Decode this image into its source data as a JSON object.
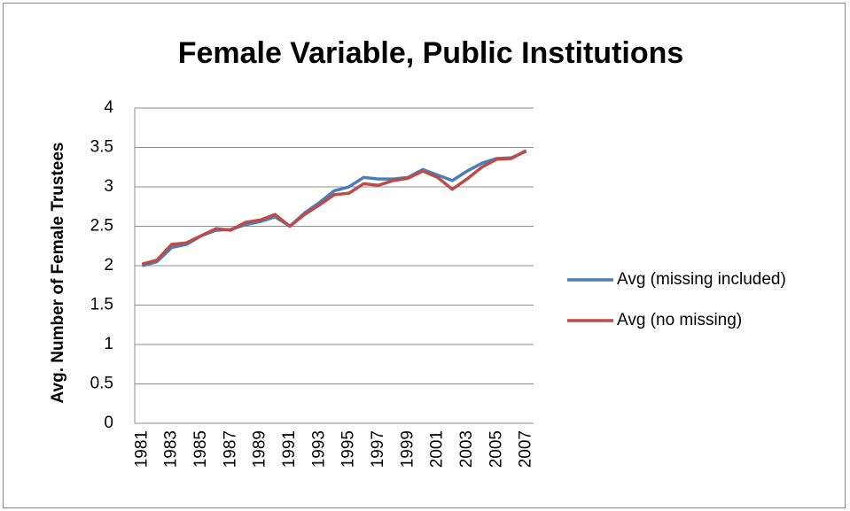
{
  "chart_data": {
    "type": "line",
    "title": "Female Variable, Public Institutions",
    "y_label": "Avg. Number of Female Trustees",
    "categories": [
      1981,
      null,
      1983,
      null,
      1985,
      null,
      1987,
      null,
      1989,
      null,
      1991,
      null,
      1993,
      null,
      1995,
      null,
      1997,
      null,
      1999,
      null,
      2001,
      null,
      2003,
      null,
      2005,
      null,
      2007
    ],
    "series": [
      {
        "name": "Avg (missing included)",
        "color": "#4a7ebb",
        "values": [
          2.0,
          2.05,
          2.23,
          2.27,
          2.38,
          2.45,
          2.46,
          2.52,
          2.56,
          2.62,
          2.5,
          2.67,
          2.8,
          2.95,
          3.0,
          3.12,
          3.1,
          3.1,
          3.12,
          3.22,
          3.15,
          3.08,
          3.2,
          3.3,
          3.36,
          3.37,
          3.45
        ]
      },
      {
        "name": "Avg (no missing)",
        "color": "#be4b48",
        "values": [
          2.02,
          2.07,
          2.27,
          2.29,
          2.38,
          2.47,
          2.45,
          2.55,
          2.58,
          2.65,
          2.5,
          2.65,
          2.77,
          2.9,
          2.92,
          3.04,
          3.02,
          3.08,
          3.11,
          3.2,
          3.12,
          2.97,
          3.1,
          3.25,
          3.35,
          3.36,
          3.46
        ]
      }
    ],
    "ylim": [
      0,
      4
    ],
    "yticks": [
      0,
      0.5,
      1,
      1.5,
      2,
      2.5,
      3,
      3.5,
      4
    ],
    "grid": true,
    "legend": "right"
  }
}
